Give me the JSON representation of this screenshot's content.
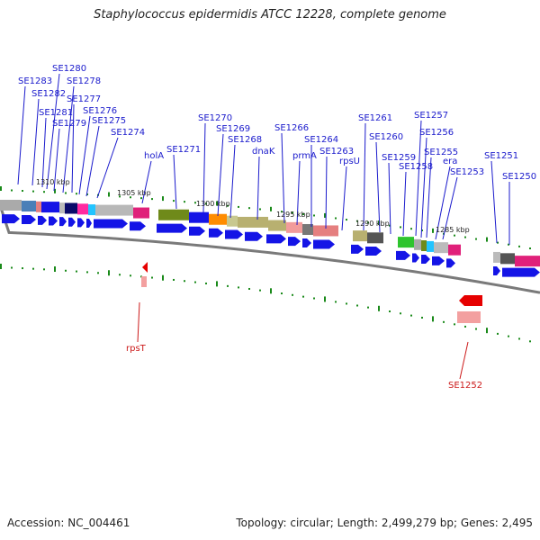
{
  "title": "Staphylococcus epidermidis ATCC 12228, complete genome",
  "footer": {
    "accession": "Accession: NC_004461",
    "summary": "Topology: circular; Length: 2,499,279 bp; Genes: 2,495"
  },
  "colors": {
    "forward_cds": "#1414e6",
    "reverse_cds": "#e60000",
    "label_forward": "#1a1acc",
    "label_reverse": "#cc1a1a",
    "tick": "#1a8a1a",
    "backbone": "#7a7a7a"
  },
  "scale": {
    "unit": "kbp",
    "labels": [
      "1310 kbp",
      "1305 kbp",
      "1300 kbp",
      "1295 kbp",
      "1290 kbp",
      "1285 kbp"
    ]
  },
  "forward_genes": [
    "SE1283",
    "SE1282",
    "SE1281",
    "SE1280",
    "SE1279",
    "SE1278",
    "SE1277",
    "SE1276",
    "SE1275",
    "SE1274",
    "holA",
    "SE1271",
    "SE1270",
    "SE1269",
    "SE1268",
    "dnaK",
    "SE1266",
    "prmA",
    "SE1264",
    "SE1263",
    "rpsU",
    "SE1261",
    "SE1260",
    "SE1259",
    "SE1258",
    "SE1257",
    "SE1256",
    "SE1255",
    "era",
    "SE1253",
    "SE1251",
    "SE1250"
  ],
  "reverse_genes": [
    "rpsT",
    "SE1252"
  ]
}
